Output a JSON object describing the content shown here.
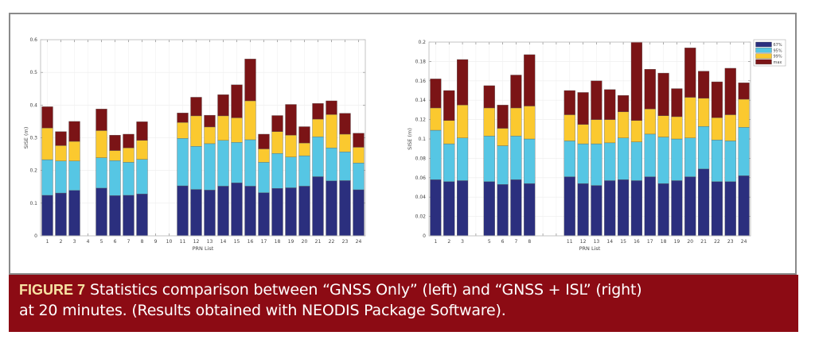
{
  "figure": {
    "label": "FIGURE 7",
    "caption_line1": "Statistics comparison between “GNSS Only” (left) and “GNSS + ISL” (right)",
    "caption_line2": "at 20 minutes. (Results obtained with NEODIS Package Software)."
  },
  "colors": {
    "p67": "#2b2f7e",
    "p95": "#56c6e4",
    "p99": "#fbc92f",
    "max": "#7b1416",
    "caption_bg": "#8c0b14",
    "caption_label": "#f7e3a3"
  },
  "chart_data": [
    {
      "type": "bar",
      "stacked": true,
      "title": "GNSS Only",
      "xlabel": "PRN List",
      "ylabel": "SISE (m)",
      "ylim": [
        0,
        0.6
      ],
      "yticks": [
        0,
        0.1,
        0.2,
        0.3,
        0.4,
        0.5,
        0.6
      ],
      "ytick_labels": [
        "0",
        "0.1",
        "0.2",
        "0.3",
        "0.4",
        "0.5",
        "0.6"
      ],
      "grid": true,
      "legend": null,
      "categories": [
        "1",
        "2",
        "3",
        "4",
        "5",
        "6",
        "7",
        "8",
        "9",
        "10",
        "11",
        "12",
        "13",
        "14",
        "15",
        "16",
        "17",
        "18",
        "19",
        "20",
        "21",
        "22",
        "23",
        "24"
      ],
      "xtick_labels": [
        "1",
        "2",
        "3",
        "4",
        "5",
        "6",
        "7",
        "8",
        "9",
        "10",
        "11",
        "12",
        "13",
        "14",
        "15",
        "16",
        "17",
        "18",
        "19",
        "20",
        "21",
        "22",
        "23",
        "24"
      ],
      "series": [
        {
          "name": "67%",
          "values": [
            0.124,
            0.131,
            0.139,
            null,
            0.146,
            0.123,
            0.124,
            0.128,
            null,
            null,
            0.153,
            0.142,
            0.14,
            0.152,
            0.162,
            0.152,
            0.132,
            0.145,
            0.147,
            0.152,
            0.181,
            0.168,
            0.169,
            0.141
          ]
        },
        {
          "name": "95%",
          "values": [
            0.233,
            0.229,
            0.229,
            null,
            0.239,
            0.23,
            0.225,
            0.234,
            null,
            null,
            0.298,
            0.274,
            0.282,
            0.292,
            0.286,
            0.294,
            0.225,
            0.252,
            0.241,
            0.245,
            0.303,
            0.269,
            0.257,
            0.223
          ]
        },
        {
          "name": "99%",
          "values": [
            0.33,
            0.276,
            0.289,
            null,
            0.322,
            0.261,
            0.269,
            0.292,
            null,
            null,
            0.347,
            0.367,
            0.333,
            0.367,
            0.361,
            0.413,
            0.266,
            0.319,
            0.308,
            0.284,
            0.357,
            0.371,
            0.311,
            0.271
          ]
        },
        {
          "name": "max",
          "values": [
            0.395,
            0.319,
            0.35,
            null,
            0.388,
            0.308,
            0.311,
            0.349,
            null,
            null,
            0.376,
            0.424,
            0.369,
            0.432,
            0.462,
            0.541,
            0.311,
            0.368,
            0.402,
            0.334,
            0.405,
            0.413,
            0.375,
            0.314
          ]
        }
      ]
    },
    {
      "type": "bar",
      "stacked": true,
      "title": "GNSS + ISL",
      "xlabel": "PRN List",
      "ylabel": "SISE (m)",
      "ylim": [
        0,
        0.2
      ],
      "yticks": [
        0,
        0.02,
        0.04,
        0.06,
        0.08,
        0.1,
        0.12,
        0.14,
        0.16,
        0.18,
        0.2
      ],
      "ytick_labels": [
        "0",
        "0.02",
        "0.04",
        "0.06",
        "0.08",
        "0.1",
        "0.12",
        "0.14",
        "0.16",
        "0.18",
        "0.2"
      ],
      "grid": true,
      "legend": {
        "placement": "outside-top-right",
        "entries": [
          "67%",
          "95%",
          "99%",
          "max"
        ]
      },
      "categories": [
        "1",
        "2",
        "3",
        "4",
        "5",
        "6",
        "7",
        "8",
        "9",
        "10",
        "11",
        "12",
        "13",
        "14",
        "15",
        "16",
        "17",
        "18",
        "19",
        "20",
        "21",
        "22",
        "23",
        "24"
      ],
      "xtick_labels": [
        "1",
        "2",
        "3",
        "",
        "5",
        "6",
        "7",
        "8",
        "",
        "",
        "11",
        "12",
        "13",
        "14",
        "15",
        "16",
        "17",
        "18",
        "19",
        "20",
        "21",
        "22",
        "23",
        "24"
      ],
      "series": [
        {
          "name": "67%",
          "values": [
            0.058,
            0.056,
            0.057,
            null,
            0.056,
            0.053,
            0.058,
            0.054,
            null,
            null,
            0.061,
            0.054,
            0.052,
            0.057,
            0.058,
            0.057,
            0.061,
            0.054,
            0.057,
            0.061,
            0.069,
            0.056,
            0.056,
            0.062
          ]
        },
        {
          "name": "95%",
          "values": [
            0.109,
            0.095,
            0.101,
            null,
            0.103,
            0.093,
            0.103,
            0.1,
            null,
            null,
            0.098,
            0.095,
            0.095,
            0.096,
            0.101,
            0.097,
            0.105,
            0.102,
            0.1,
            0.101,
            0.113,
            0.099,
            0.098,
            0.112
          ]
        },
        {
          "name": "99%",
          "values": [
            0.132,
            0.119,
            0.135,
            null,
            0.132,
            0.111,
            0.132,
            0.134,
            null,
            null,
            0.125,
            0.115,
            0.12,
            0.12,
            0.128,
            0.119,
            0.131,
            0.124,
            0.123,
            0.143,
            0.142,
            0.122,
            0.125,
            0.141
          ]
        },
        {
          "name": "max",
          "values": [
            0.162,
            0.15,
            0.182,
            null,
            0.155,
            0.135,
            0.166,
            0.187,
            null,
            null,
            0.15,
            0.148,
            0.16,
            0.151,
            0.145,
            0.2,
            0.172,
            0.168,
            0.152,
            0.194,
            0.17,
            0.159,
            0.173,
            0.158
          ]
        }
      ]
    }
  ]
}
